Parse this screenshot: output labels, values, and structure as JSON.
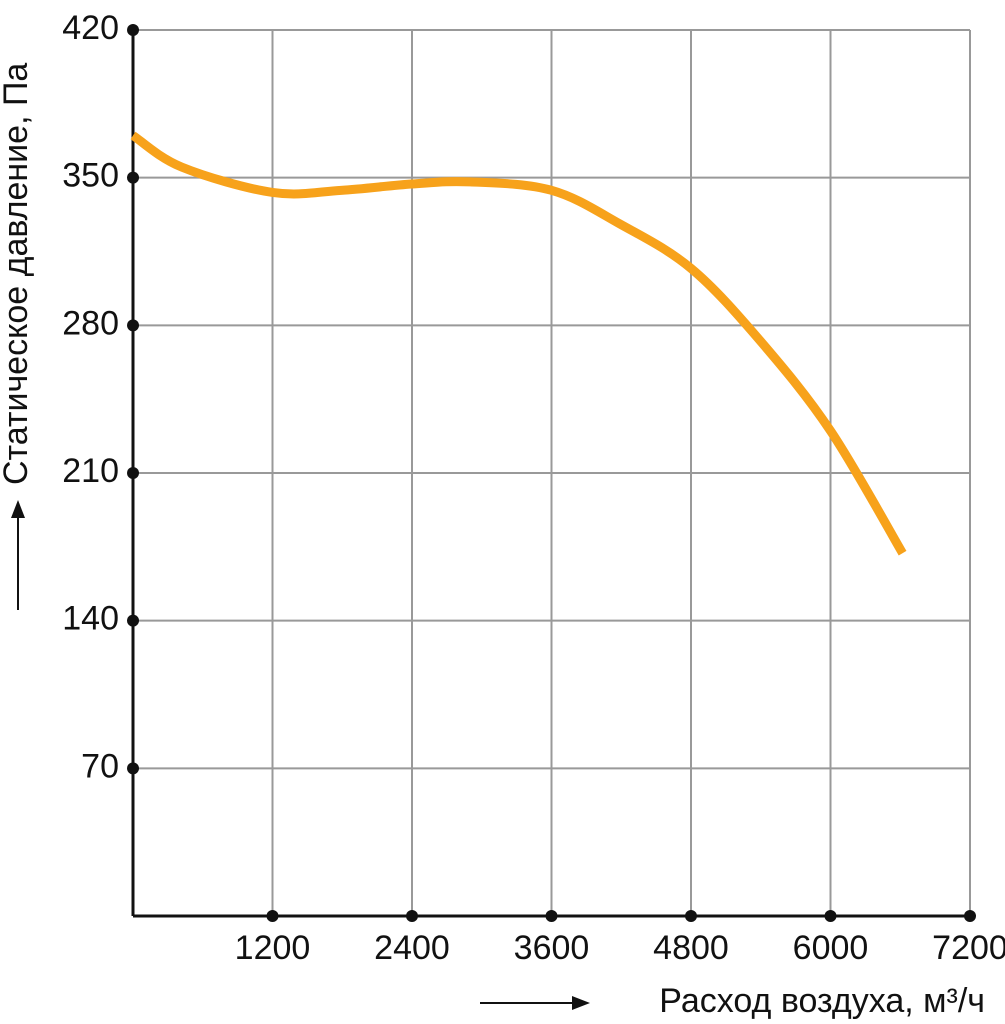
{
  "chart_data": {
    "type": "line",
    "x_label": "Расход воздуха, м³/ч",
    "y_label": "Статическое давление, Па",
    "xlim": [
      0,
      7200
    ],
    "ylim": [
      0,
      420
    ],
    "xticks": [
      1200,
      2400,
      3600,
      4800,
      6000,
      7200
    ],
    "yticks": [
      70,
      140,
      210,
      280,
      350,
      420
    ],
    "grid": true,
    "series": [
      {
        "color": "#f7a21b",
        "x": [
          0,
          420,
          1200,
          1790,
          2400,
          2900,
          3600,
          4190,
          4800,
          5390,
          6000,
          6620
        ],
        "values": [
          370,
          355,
          343,
          344,
          347,
          348,
          344,
          328,
          307,
          273,
          230,
          172
        ]
      }
    ]
  }
}
